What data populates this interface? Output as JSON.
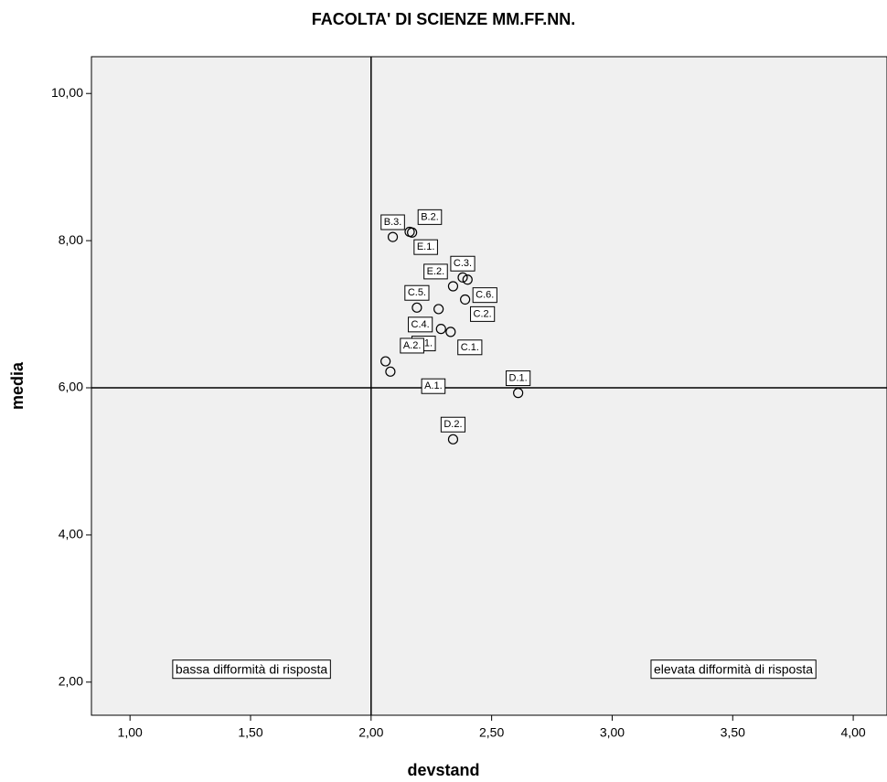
{
  "chart_data": {
    "type": "scatter",
    "title": "FACOLTA' DI SCIENZE MM.FF.NN.",
    "x_label": "devstand",
    "y_label": "media",
    "point_labels": [
      "B.3.",
      "B.2.",
      "E.1.",
      "C.3.",
      "C.6.",
      "E.2.",
      "C.2.",
      "C.5.",
      "C.4.",
      "B.1.",
      "C.1.",
      "A.2.",
      "A.1.",
      "D.1.",
      "D.2."
    ],
    "x": [
      2.09,
      2.16,
      2.17,
      2.38,
      2.4,
      2.34,
      2.39,
      2.19,
      2.28,
      2.29,
      2.33,
      2.06,
      2.08,
      2.61,
      2.34
    ],
    "values": [
      8.05,
      8.12,
      8.11,
      7.5,
      7.47,
      7.38,
      7.2,
      7.09,
      7.07,
      6.8,
      6.76,
      6.36,
      6.22,
      5.93,
      5.3
    ],
    "xlim": [
      0.84,
      4.14
    ],
    "ylim": [
      1.55,
      10.5
    ],
    "xticks": [
      {
        "value": 1,
        "label": "1,00"
      },
      {
        "value": 1.5,
        "label": "1,50"
      },
      {
        "value": 2,
        "label": "2,00"
      },
      {
        "value": 2.5,
        "label": "2,50"
      },
      {
        "value": 3,
        "label": "3,00"
      },
      {
        "value": 3.5,
        "label": "3,50"
      },
      {
        "value": 4,
        "label": "4,00"
      }
    ],
    "yticks": [
      {
        "value": 2,
        "label": "2,00"
      },
      {
        "value": 4,
        "label": "4,00"
      },
      {
        "value": 6,
        "label": "6,00"
      },
      {
        "value": 8,
        "label": "8,00"
      },
      {
        "value": 10,
        "label": "10,00"
      }
    ],
    "vline": 2,
    "hline": 6,
    "annotations": [
      "bassa difformità di risposta",
      "elevata difformità di risposta"
    ],
    "background": "#f0f0f0",
    "marker_color": "#000000"
  }
}
